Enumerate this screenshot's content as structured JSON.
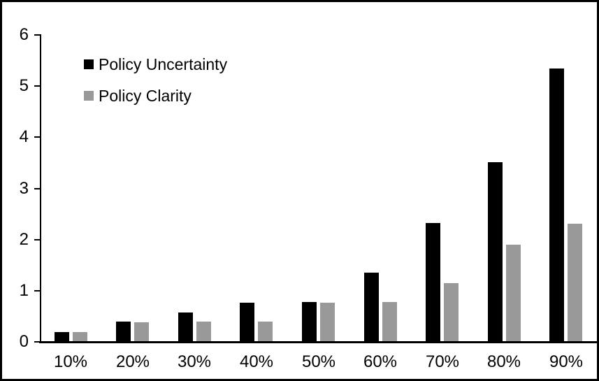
{
  "chart_data": {
    "type": "bar",
    "title": "",
    "xlabel": "",
    "ylabel": "",
    "categories": [
      "10%",
      "20%",
      "30%",
      "40%",
      "50%",
      "60%",
      "70%",
      "80%",
      "90%"
    ],
    "series": [
      {
        "name": "Policy Uncertainty",
        "color": "#000000",
        "values": [
          0.19,
          0.39,
          0.57,
          0.77,
          0.78,
          1.35,
          2.32,
          3.51,
          5.34
        ]
      },
      {
        "name": "Policy Clarity",
        "color": "#999999",
        "values": [
          0.19,
          0.38,
          0.39,
          0.39,
          0.77,
          0.78,
          1.15,
          1.9,
          2.31
        ]
      }
    ],
    "ylim": [
      0,
      6
    ],
    "yticks": [
      0,
      1,
      2,
      3,
      4,
      5,
      6
    ],
    "grid": false,
    "legend_position": "top-left-inside"
  },
  "frame": {
    "background": "#ffffff",
    "border_color": "#000000",
    "axis_color": "#000000"
  }
}
